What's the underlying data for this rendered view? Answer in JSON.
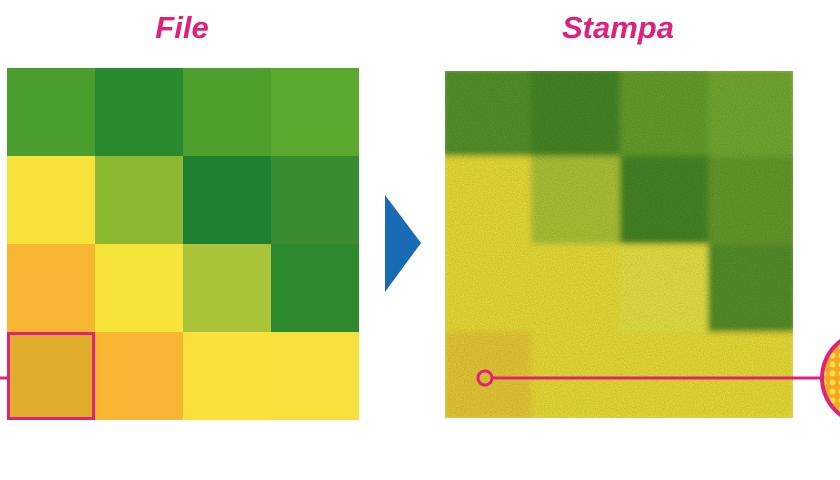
{
  "labels": {
    "left": "File",
    "right": "Stampa"
  }
}
